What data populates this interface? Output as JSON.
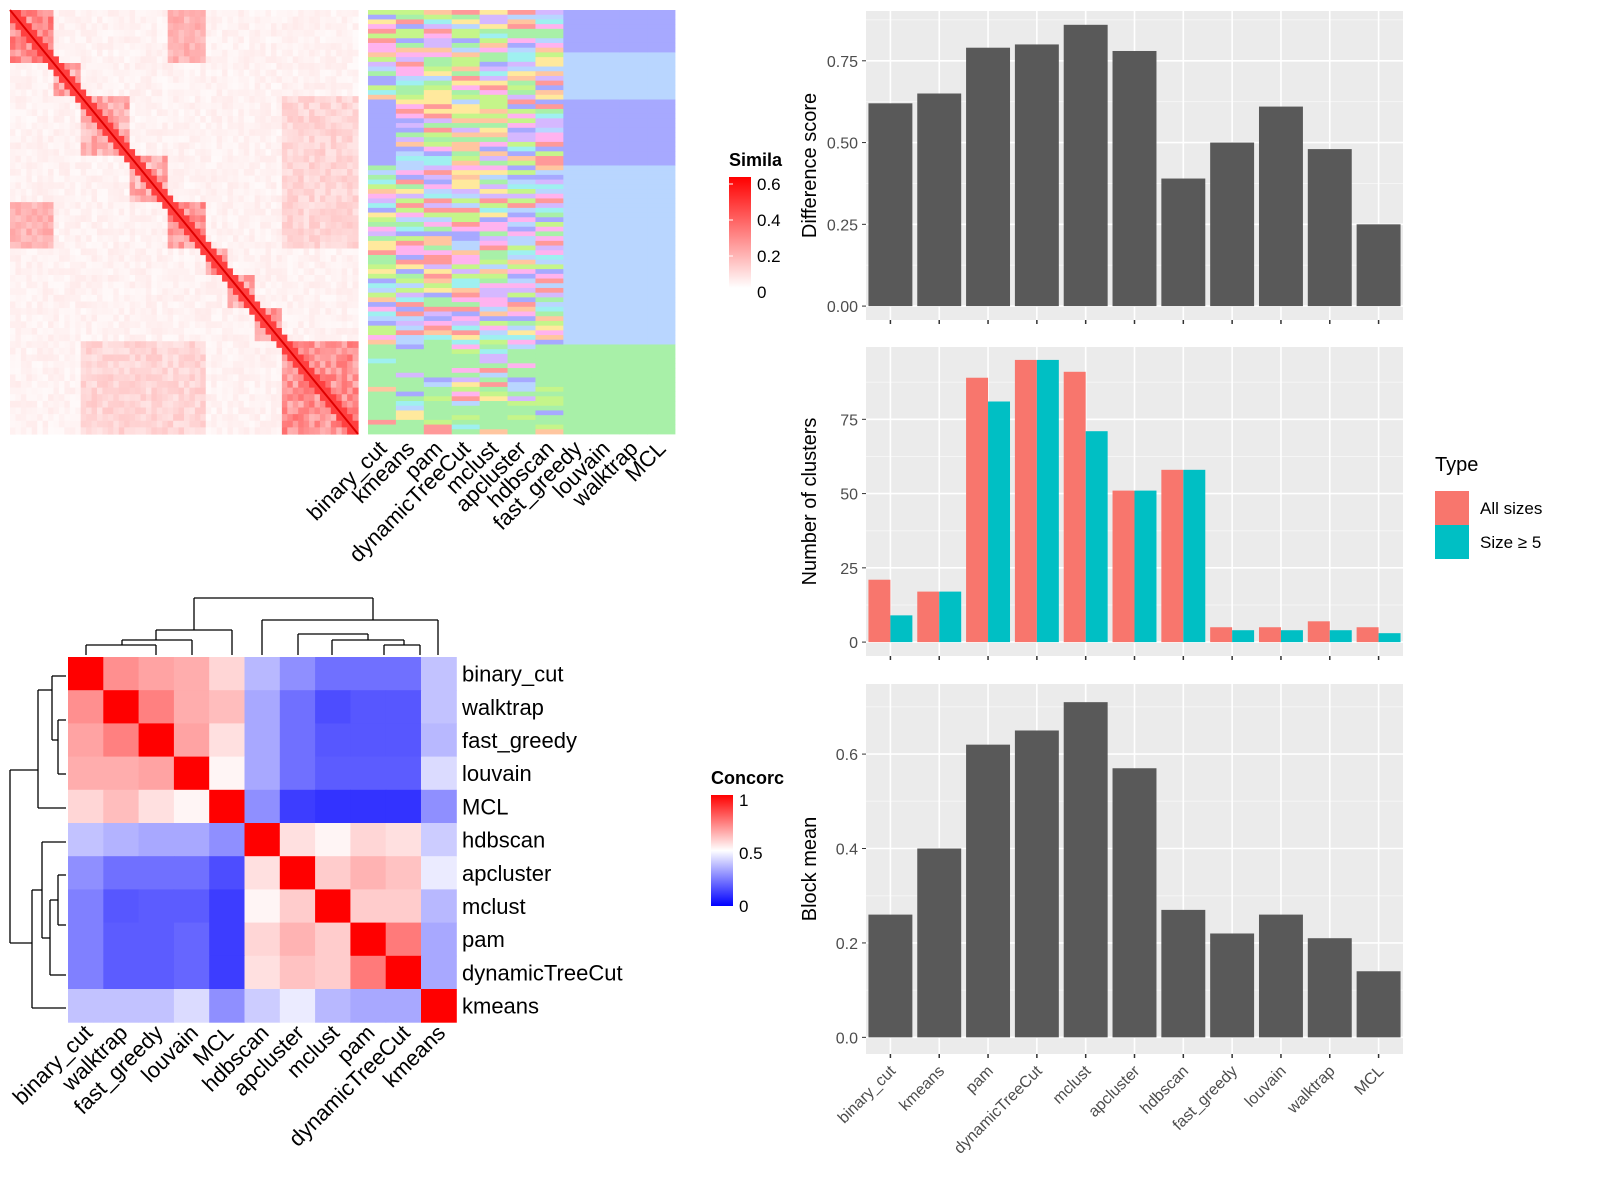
{
  "chart_data": [
    {
      "type": "heatmap",
      "panel": "similarity-heatmap",
      "legend": {
        "title": "Simila",
        "ticks": [
          "0.6",
          "0.4",
          "0.2",
          "0"
        ],
        "colors": [
          "#ffffff",
          "#ff0000"
        ]
      },
      "cluster_columns": [
        "binary_cut",
        "kmeans",
        "pam",
        "dynamicTreeCut",
        "mclust",
        "apcluster",
        "hdbscan",
        "fast_greedy",
        "louvain",
        "walktrap",
        "MCL"
      ]
    },
    {
      "type": "heatmap",
      "panel": "concordance-heatmap",
      "legend": {
        "title": "Concorc",
        "ticks": [
          "1",
          "0.5",
          "0"
        ],
        "colors": [
          "#0000ff",
          "#ffffff",
          "#ff0000"
        ]
      },
      "rows": [
        "binary_cut",
        "walktrap",
        "fast_greedy",
        "louvain",
        "MCL",
        "hdbscan",
        "apcluster",
        "mclust",
        "pam",
        "dynamicTreeCut",
        "kmeans"
      ],
      "columns": [
        "binary_cut",
        "walktrap",
        "fast_greedy",
        "louvain",
        "MCL",
        "hdbscan",
        "apcluster",
        "mclust",
        "pam",
        "dynamicTreeCut",
        "kmeans"
      ],
      "values": [
        [
          1.0,
          0.72,
          0.68,
          0.66,
          0.58,
          0.36,
          0.28,
          0.22,
          0.22,
          0.22,
          0.38
        ],
        [
          0.72,
          1.0,
          0.75,
          0.66,
          0.63,
          0.33,
          0.22,
          0.15,
          0.17,
          0.17,
          0.38
        ],
        [
          0.68,
          0.75,
          1.0,
          0.68,
          0.56,
          0.33,
          0.22,
          0.17,
          0.17,
          0.17,
          0.36
        ],
        [
          0.66,
          0.66,
          0.68,
          1.0,
          0.52,
          0.33,
          0.22,
          0.18,
          0.18,
          0.18,
          0.43
        ],
        [
          0.58,
          0.63,
          0.56,
          0.52,
          1.0,
          0.28,
          0.12,
          0.1,
          0.1,
          0.1,
          0.28
        ],
        [
          0.38,
          0.35,
          0.33,
          0.33,
          0.28,
          1.0,
          0.56,
          0.52,
          0.58,
          0.56,
          0.4
        ],
        [
          0.28,
          0.22,
          0.22,
          0.22,
          0.15,
          0.56,
          1.0,
          0.6,
          0.65,
          0.62,
          0.46
        ],
        [
          0.25,
          0.17,
          0.18,
          0.18,
          0.12,
          0.52,
          0.6,
          1.0,
          0.6,
          0.6,
          0.36
        ],
        [
          0.25,
          0.18,
          0.18,
          0.2,
          0.12,
          0.58,
          0.65,
          0.6,
          1.0,
          0.76,
          0.33
        ],
        [
          0.25,
          0.18,
          0.18,
          0.2,
          0.12,
          0.56,
          0.62,
          0.6,
          0.76,
          1.0,
          0.33
        ],
        [
          0.38,
          0.38,
          0.38,
          0.43,
          0.28,
          0.4,
          0.46,
          0.36,
          0.33,
          0.33,
          1.0
        ]
      ]
    },
    {
      "type": "bar",
      "panel": "difference-score",
      "categories": [
        "binary_cut",
        "kmeans",
        "pam",
        "dynamicTreeCut",
        "mclust",
        "apcluster",
        "hdbscan",
        "fast_greedy",
        "louvain",
        "walktrap",
        "MCL"
      ],
      "values": [
        0.62,
        0.65,
        0.79,
        0.8,
        0.86,
        0.78,
        0.39,
        0.5,
        0.61,
        0.48,
        0.25
      ],
      "ylabel": "Difference score",
      "xlabel": "",
      "ylim": [
        0,
        0.89
      ],
      "yticks": [
        "0.00",
        "0.25",
        "0.50",
        "0.75"
      ],
      "bar_color": "#595959"
    },
    {
      "type": "bar",
      "panel": "number-of-clusters",
      "categories": [
        "binary_cut",
        "kmeans",
        "pam",
        "dynamicTreeCut",
        "mclust",
        "apcluster",
        "hdbscan",
        "fast_greedy",
        "louvain",
        "walktrap",
        "MCL"
      ],
      "series": [
        {
          "name": "All sizes",
          "values": [
            21,
            17,
            89,
            95,
            91,
            51,
            58,
            5,
            5,
            7,
            5
          ],
          "color": "#f8766d"
        },
        {
          "name": "Size ≥ 5",
          "values": [
            9,
            17,
            81,
            95,
            71,
            51,
            58,
            4,
            4,
            4,
            3
          ],
          "color": "#00bfc4"
        }
      ],
      "ylabel": "Number of clusters",
      "xlabel": "",
      "ylim": [
        0,
        98
      ],
      "yticks": [
        "0",
        "25",
        "50",
        "75"
      ],
      "legend": {
        "title": "Type",
        "placement": "right"
      }
    },
    {
      "type": "bar",
      "panel": "block-mean",
      "categories": [
        "binary_cut",
        "kmeans",
        "pam",
        "dynamicTreeCut",
        "mclust",
        "apcluster",
        "hdbscan",
        "fast_greedy",
        "louvain",
        "walktrap",
        "MCL"
      ],
      "values": [
        0.26,
        0.4,
        0.62,
        0.65,
        0.71,
        0.57,
        0.27,
        0.22,
        0.26,
        0.21,
        0.14
      ],
      "ylabel": "Block mean",
      "xlabel": "",
      "ylim": [
        0,
        0.74
      ],
      "yticks": [
        "0.0",
        "0.2",
        "0.4",
        "0.6"
      ],
      "bar_color": "#595959"
    }
  ]
}
